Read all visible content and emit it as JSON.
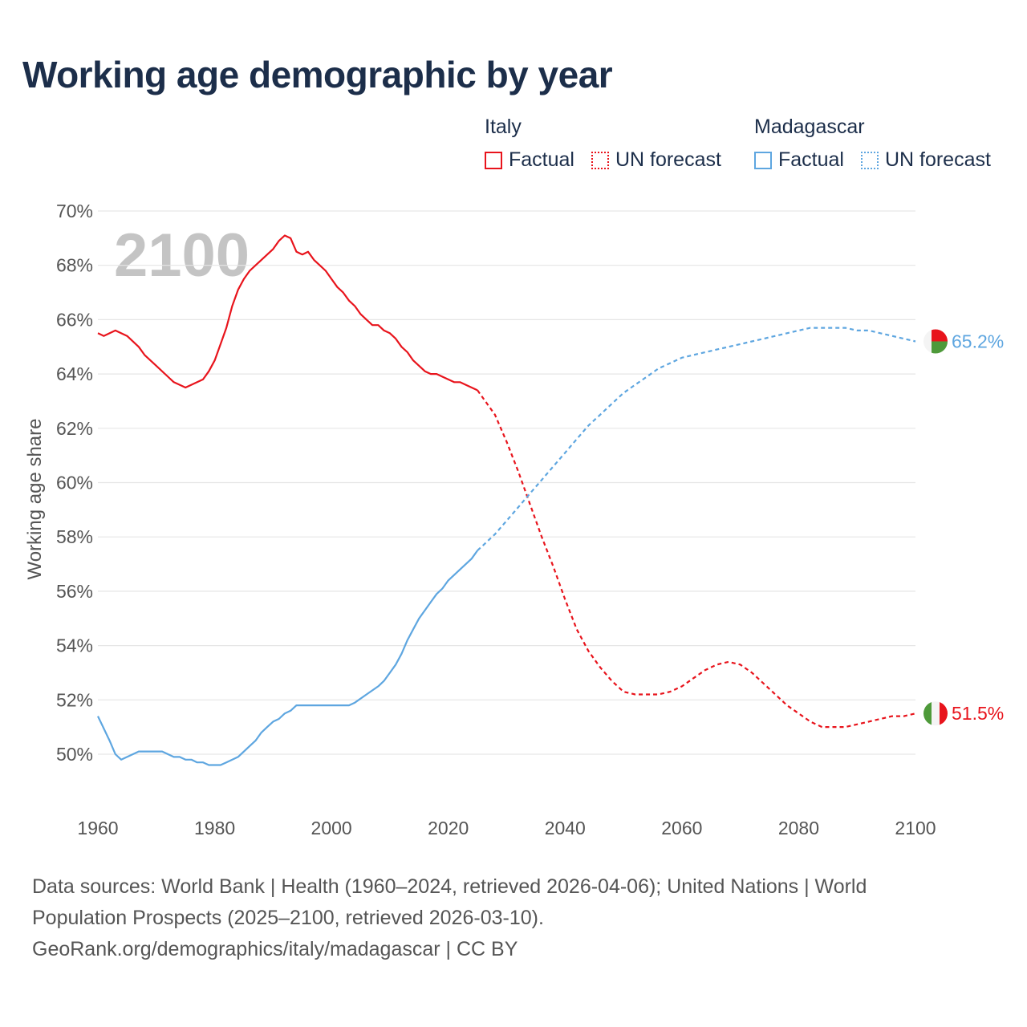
{
  "header": {
    "title": "Working age demographic by year"
  },
  "legend": {
    "italy": {
      "title": "Italy",
      "factual": "Factual",
      "forecast": "UN forecast"
    },
    "madagascar": {
      "title": "Madagascar",
      "factual": "Factual",
      "forecast": "UN forecast"
    }
  },
  "colors": {
    "italy": "#e8141c",
    "madagascar": "#5ea6e0",
    "grid": "#e6e6e6",
    "year_watermark": "#c4c4c4",
    "text": "#1c2e4a"
  },
  "chart_data": {
    "type": "line",
    "title": "Working age demographic by year",
    "ylabel": "Working age share",
    "xlabel": "",
    "xlim": [
      1960,
      2100
    ],
    "ylim": [
      48,
      70
    ],
    "y_ticks": [
      50,
      52,
      54,
      56,
      58,
      60,
      62,
      64,
      66,
      68,
      70
    ],
    "y_tick_labels": [
      "50%",
      "52%",
      "54%",
      "56%",
      "58%",
      "60%",
      "62%",
      "64%",
      "66%",
      "68%",
      "70%"
    ],
    "x_ticks": [
      1960,
      1980,
      2000,
      2020,
      2040,
      2060,
      2080,
      2100
    ],
    "x_tick_labels": [
      "1960",
      "1980",
      "2000",
      "2020",
      "2040",
      "2060",
      "2080",
      "2100"
    ],
    "current_year_label": "2100",
    "grid": true,
    "forecast_start": 2025,
    "series": [
      {
        "name": "Italy",
        "color": "#e8141c",
        "end_label": "51.5%",
        "flag": "italy-flag-icon",
        "points": [
          [
            1960,
            65.5
          ],
          [
            1961,
            65.4
          ],
          [
            1963,
            65.6
          ],
          [
            1965,
            65.4
          ],
          [
            1967,
            65.0
          ],
          [
            1968,
            64.7
          ],
          [
            1970,
            64.3
          ],
          [
            1972,
            63.9
          ],
          [
            1973,
            63.7
          ],
          [
            1975,
            63.5
          ],
          [
            1976,
            63.6
          ],
          [
            1978,
            63.8
          ],
          [
            1979,
            64.1
          ],
          [
            1980,
            64.5
          ],
          [
            1981,
            65.1
          ],
          [
            1982,
            65.7
          ],
          [
            1983,
            66.5
          ],
          [
            1984,
            67.1
          ],
          [
            1985,
            67.5
          ],
          [
            1986,
            67.8
          ],
          [
            1987,
            68.0
          ],
          [
            1988,
            68.2
          ],
          [
            1989,
            68.4
          ],
          [
            1990,
            68.6
          ],
          [
            1991,
            68.9
          ],
          [
            1992,
            69.1
          ],
          [
            1993,
            69.0
          ],
          [
            1994,
            68.5
          ],
          [
            1995,
            68.4
          ],
          [
            1996,
            68.5
          ],
          [
            1997,
            68.2
          ],
          [
            1998,
            68.0
          ],
          [
            1999,
            67.8
          ],
          [
            2000,
            67.5
          ],
          [
            2001,
            67.2
          ],
          [
            2002,
            67.0
          ],
          [
            2003,
            66.7
          ],
          [
            2004,
            66.5
          ],
          [
            2005,
            66.2
          ],
          [
            2006,
            66.0
          ],
          [
            2007,
            65.8
          ],
          [
            2008,
            65.8
          ],
          [
            2009,
            65.6
          ],
          [
            2010,
            65.5
          ],
          [
            2011,
            65.3
          ],
          [
            2012,
            65.0
          ],
          [
            2013,
            64.8
          ],
          [
            2014,
            64.5
          ],
          [
            2015,
            64.3
          ],
          [
            2016,
            64.1
          ],
          [
            2017,
            64.0
          ],
          [
            2018,
            64.0
          ],
          [
            2019,
            63.9
          ],
          [
            2020,
            63.8
          ],
          [
            2021,
            63.7
          ],
          [
            2022,
            63.7
          ],
          [
            2023,
            63.6
          ],
          [
            2024,
            63.5
          ],
          [
            2025,
            63.4
          ],
          [
            2026,
            63.1
          ],
          [
            2028,
            62.5
          ],
          [
            2030,
            61.5
          ],
          [
            2032,
            60.4
          ],
          [
            2034,
            59.2
          ],
          [
            2036,
            58.0
          ],
          [
            2038,
            56.9
          ],
          [
            2040,
            55.7
          ],
          [
            2042,
            54.6
          ],
          [
            2044,
            53.8
          ],
          [
            2046,
            53.2
          ],
          [
            2048,
            52.7
          ],
          [
            2050,
            52.3
          ],
          [
            2052,
            52.2
          ],
          [
            2054,
            52.2
          ],
          [
            2056,
            52.2
          ],
          [
            2058,
            52.3
          ],
          [
            2060,
            52.5
          ],
          [
            2062,
            52.8
          ],
          [
            2064,
            53.1
          ],
          [
            2066,
            53.3
          ],
          [
            2068,
            53.4
          ],
          [
            2070,
            53.3
          ],
          [
            2072,
            53.0
          ],
          [
            2074,
            52.6
          ],
          [
            2076,
            52.2
          ],
          [
            2078,
            51.8
          ],
          [
            2080,
            51.5
          ],
          [
            2082,
            51.2
          ],
          [
            2084,
            51.0
          ],
          [
            2086,
            51.0
          ],
          [
            2088,
            51.0
          ],
          [
            2090,
            51.1
          ],
          [
            2092,
            51.2
          ],
          [
            2094,
            51.3
          ],
          [
            2096,
            51.4
          ],
          [
            2098,
            51.4
          ],
          [
            2100,
            51.5
          ]
        ]
      },
      {
        "name": "Madagascar",
        "color": "#5ea6e0",
        "end_label": "65.2%",
        "flag": "madagascar-flag-icon",
        "points": [
          [
            1960,
            51.4
          ],
          [
            1962,
            50.5
          ],
          [
            1963,
            50.0
          ],
          [
            1964,
            49.8
          ],
          [
            1965,
            49.9
          ],
          [
            1967,
            50.1
          ],
          [
            1969,
            50.1
          ],
          [
            1971,
            50.1
          ],
          [
            1973,
            49.9
          ],
          [
            1974,
            49.9
          ],
          [
            1975,
            49.8
          ],
          [
            1976,
            49.8
          ],
          [
            1977,
            49.7
          ],
          [
            1978,
            49.7
          ],
          [
            1979,
            49.6
          ],
          [
            1981,
            49.6
          ],
          [
            1982,
            49.7
          ],
          [
            1984,
            49.9
          ],
          [
            1986,
            50.3
          ],
          [
            1987,
            50.5
          ],
          [
            1988,
            50.8
          ],
          [
            1989,
            51.0
          ],
          [
            1990,
            51.2
          ],
          [
            1991,
            51.3
          ],
          [
            1992,
            51.5
          ],
          [
            1993,
            51.6
          ],
          [
            1994,
            51.8
          ],
          [
            1995,
            51.8
          ],
          [
            2000,
            51.8
          ],
          [
            2003,
            51.8
          ],
          [
            2004,
            51.9
          ],
          [
            2006,
            52.2
          ],
          [
            2008,
            52.5
          ],
          [
            2009,
            52.7
          ],
          [
            2010,
            53.0
          ],
          [
            2011,
            53.3
          ],
          [
            2012,
            53.7
          ],
          [
            2013,
            54.2
          ],
          [
            2014,
            54.6
          ],
          [
            2015,
            55.0
          ],
          [
            2016,
            55.3
          ],
          [
            2017,
            55.6
          ],
          [
            2018,
            55.9
          ],
          [
            2019,
            56.1
          ],
          [
            2020,
            56.4
          ],
          [
            2022,
            56.8
          ],
          [
            2024,
            57.2
          ],
          [
            2025,
            57.5
          ],
          [
            2026,
            57.7
          ],
          [
            2028,
            58.1
          ],
          [
            2030,
            58.6
          ],
          [
            2032,
            59.1
          ],
          [
            2034,
            59.6
          ],
          [
            2036,
            60.1
          ],
          [
            2038,
            60.6
          ],
          [
            2040,
            61.1
          ],
          [
            2042,
            61.6
          ],
          [
            2044,
            62.1
          ],
          [
            2046,
            62.5
          ],
          [
            2048,
            62.9
          ],
          [
            2050,
            63.3
          ],
          [
            2052,
            63.6
          ],
          [
            2054,
            63.9
          ],
          [
            2056,
            64.2
          ],
          [
            2058,
            64.4
          ],
          [
            2060,
            64.6
          ],
          [
            2062,
            64.7
          ],
          [
            2064,
            64.8
          ],
          [
            2066,
            64.9
          ],
          [
            2068,
            65.0
          ],
          [
            2070,
            65.1
          ],
          [
            2072,
            65.2
          ],
          [
            2074,
            65.3
          ],
          [
            2076,
            65.4
          ],
          [
            2078,
            65.5
          ],
          [
            2080,
            65.6
          ],
          [
            2082,
            65.7
          ],
          [
            2084,
            65.7
          ],
          [
            2086,
            65.7
          ],
          [
            2088,
            65.7
          ],
          [
            2090,
            65.6
          ],
          [
            2092,
            65.6
          ],
          [
            2094,
            65.5
          ],
          [
            2096,
            65.4
          ],
          [
            2098,
            65.3
          ],
          [
            2100,
            65.2
          ]
        ]
      }
    ]
  },
  "footer": {
    "line1": "Data sources: World Bank | Health (1960–2024, retrieved 2026-04-06); United Nations | World",
    "line2": "Population Prospects (2025–2100, retrieved 2026-03-10).",
    "line3": "GeoRank.org/demographics/italy/madagascar | CC BY"
  }
}
